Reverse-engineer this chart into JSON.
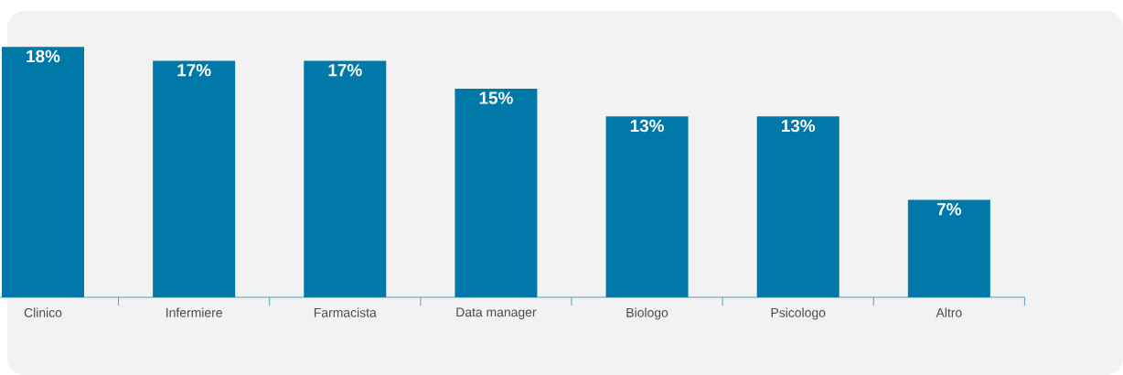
{
  "chart_data": {
    "type": "bar",
    "categories": [
      "Clinico",
      "Infermiere",
      "Farmacista",
      "Data manager",
      "Biologo",
      "Psicologo",
      "Altro"
    ],
    "values": [
      18,
      17,
      17,
      15,
      13,
      13,
      7
    ],
    "value_labels": [
      "18%",
      "17%",
      "17%",
      "15%",
      "13%",
      "13%",
      "7%"
    ],
    "color": "#0079a8"
  }
}
